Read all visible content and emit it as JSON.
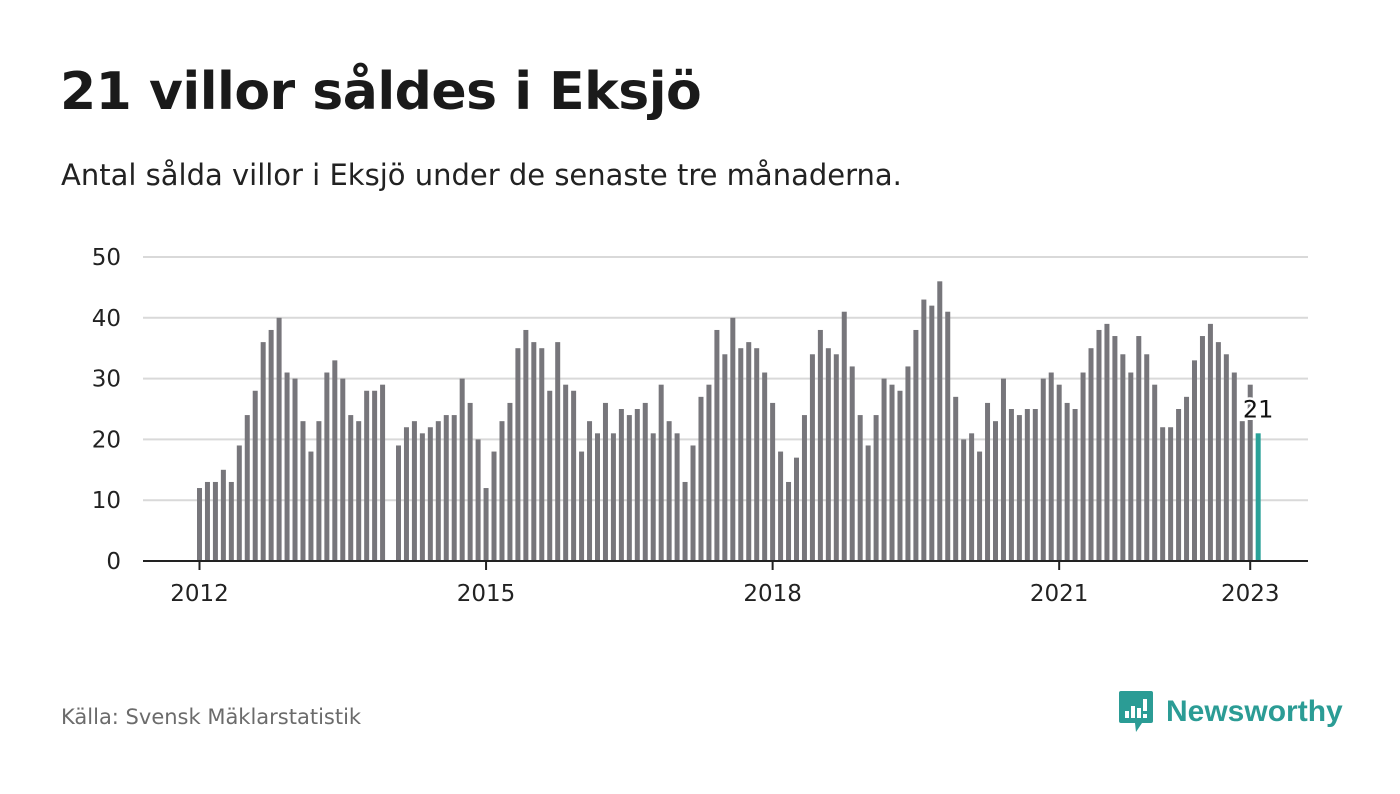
{
  "title": "21 villor såldes i Eksjö",
  "subtitle": "Antal sålda villor i Eksjö under de senaste tre månaderna.",
  "source": "Källa: Svensk Mäklarstatistik",
  "brand": {
    "name": "Newsworthy",
    "icon": "newsworthy-logo-icon",
    "color": "#2b9c95"
  },
  "colors": {
    "bar": "#77767b",
    "highlight": "#2aa198",
    "grid": "#d9d9d9",
    "axis": "#222222"
  },
  "chart_data": {
    "type": "bar",
    "y_ticks": [
      0,
      10,
      20,
      30,
      40,
      50
    ],
    "ylim": [
      0,
      50
    ],
    "x_ticks": [
      "2012",
      "2015",
      "2018",
      "2021",
      "2023"
    ],
    "x_tick_indices": [
      0,
      36,
      72,
      108,
      132
    ],
    "start_month": "2012-01",
    "gap_index": 24,
    "highlight_label": "21",
    "grid": true,
    "values": [
      12,
      13,
      13,
      15,
      13,
      19,
      24,
      28,
      36,
      38,
      40,
      31,
      30,
      23,
      18,
      23,
      31,
      33,
      30,
      24,
      23,
      28,
      28,
      29,
      null,
      19,
      22,
      23,
      21,
      22,
      23,
      24,
      24,
      30,
      26,
      20,
      12,
      18,
      23,
      26,
      35,
      38,
      36,
      35,
      28,
      36,
      29,
      28,
      18,
      23,
      21,
      26,
      21,
      25,
      24,
      25,
      26,
      21,
      29,
      23,
      21,
      13,
      19,
      27,
      29,
      38,
      34,
      40,
      35,
      36,
      35,
      31,
      26,
      18,
      13,
      17,
      24,
      34,
      38,
      35,
      34,
      41,
      32,
      24,
      19,
      24,
      30,
      29,
      28,
      32,
      38,
      43,
      42,
      46,
      41,
      27,
      20,
      21,
      18,
      26,
      23,
      30,
      25,
      24,
      25,
      25,
      30,
      31,
      29,
      26,
      25,
      31,
      35,
      38,
      39,
      37,
      34,
      31,
      37,
      34,
      29,
      22,
      22,
      25,
      27,
      33,
      37,
      39,
      36,
      34,
      31,
      23,
      29,
      21
    ]
  }
}
